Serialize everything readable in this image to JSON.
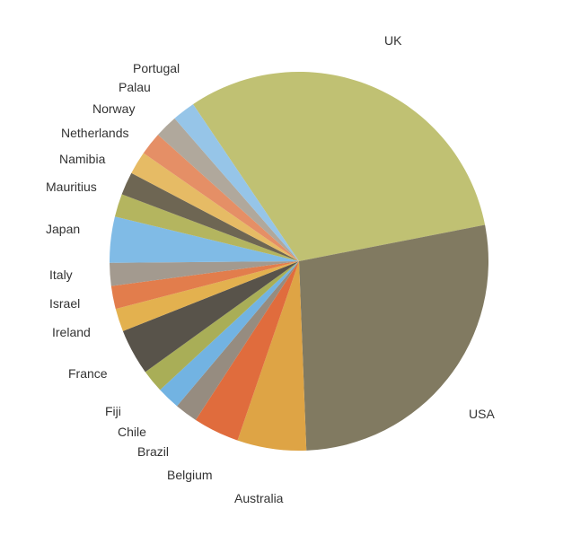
{
  "chart_data": {
    "type": "pie",
    "title": "",
    "slices": [
      {
        "label": "UK",
        "value": 16,
        "color": "#c0c173"
      },
      {
        "label": "USA",
        "value": 14,
        "color": "#817a61"
      },
      {
        "label": "Australia",
        "value": 3,
        "color": "#dea445"
      },
      {
        "label": "Belgium",
        "value": 2,
        "color": "#e06c3d"
      },
      {
        "label": "Brazil",
        "value": 1,
        "color": "#968c80"
      },
      {
        "label": "Chile",
        "value": 1,
        "color": "#72b3e2"
      },
      {
        "label": "Fiji",
        "value": 1,
        "color": "#a9ae57"
      },
      {
        "label": "France",
        "value": 2,
        "color": "#58534a"
      },
      {
        "label": "Ireland",
        "value": 1,
        "color": "#e3b14f"
      },
      {
        "label": "Israel",
        "value": 1,
        "color": "#e27d4c"
      },
      {
        "label": "Italy",
        "value": 1,
        "color": "#a39a8f"
      },
      {
        "label": "Japan",
        "value": 2,
        "color": "#80bbe6"
      },
      {
        "label": "Mauritius",
        "value": 1,
        "color": "#b4b55f"
      },
      {
        "label": "Namibia",
        "value": 1,
        "color": "#6e6653"
      },
      {
        "label": "Netherlands",
        "value": 1,
        "color": "#e6bb65"
      },
      {
        "label": "Norway",
        "value": 1,
        "color": "#e58f66"
      },
      {
        "label": "Palau",
        "value": 1,
        "color": "#b0a89c"
      },
      {
        "label": "Portugal",
        "value": 1,
        "color": "#96c5e8"
      }
    ],
    "legend": "none"
  }
}
